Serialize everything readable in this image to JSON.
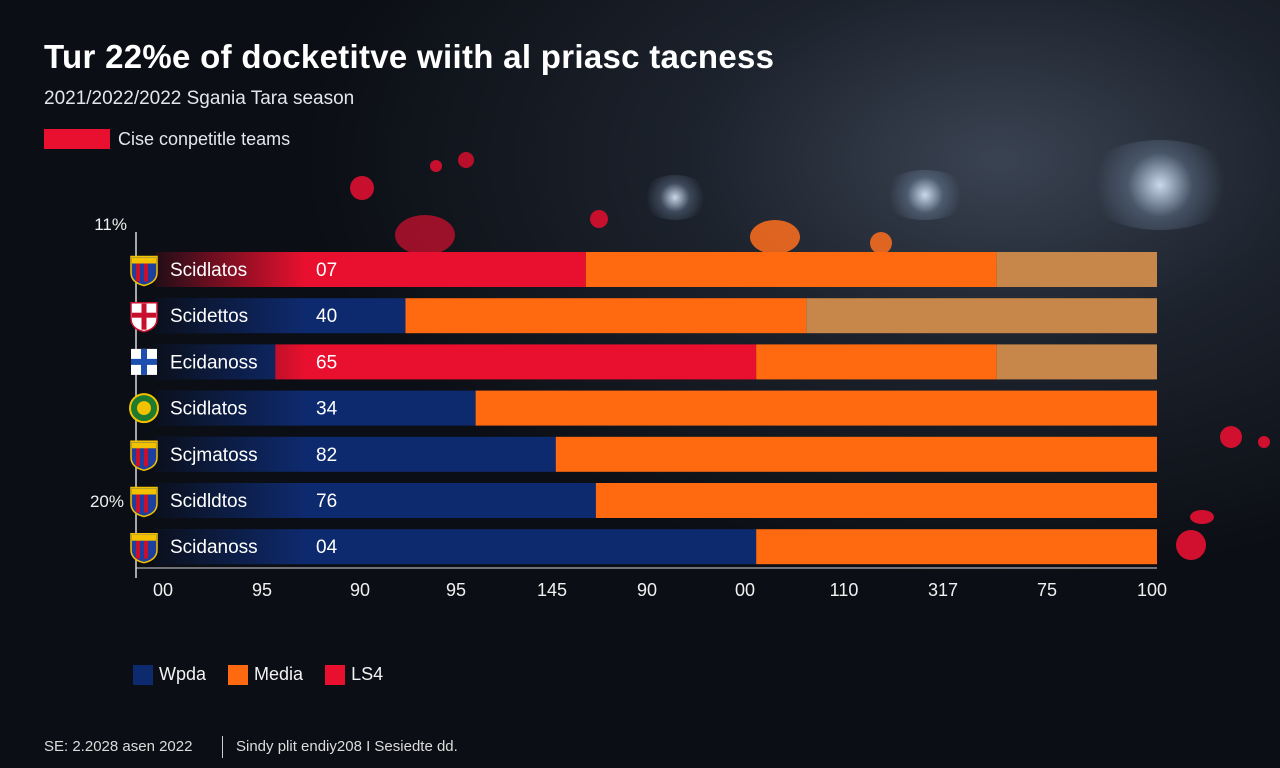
{
  "title": "Tur 22%e of docketitve wiith al priasc tacness",
  "subtitle": "2021/2022/2022 Sgania Tara season",
  "top_legend": {
    "label": "Cise conpetitle teams",
    "color": "#e8102e"
  },
  "colors": {
    "blue": "#0e2a6e",
    "orange": "#ff6a10",
    "red": "#e8102e",
    "tan": "#c8874a"
  },
  "chart_data": {
    "type": "bar",
    "orientation": "horizontal",
    "stacked": true,
    "y_axis_labels": [
      "11%",
      "20%"
    ],
    "rows": [
      {
        "team": "Scidlatos",
        "value_label": "07",
        "crest": "stripes-red-blue",
        "blue": 0,
        "red": 43,
        "orange": 41,
        "tan": 16
      },
      {
        "team": "Scidettos",
        "value_label": "40",
        "crest": "cross-red-white",
        "blue": 25,
        "red": 0,
        "orange": 40,
        "tan": 35
      },
      {
        "team": "Ecidanoss",
        "value_label": "65",
        "crest": "cross-blue-white",
        "blue": 12,
        "red": 48,
        "orange": 24,
        "tan": 16
      },
      {
        "team": "Scidlatos",
        "value_label": "34",
        "crest": "round-green-yellow",
        "blue": 32,
        "red": 0,
        "orange": 68,
        "tan": 0
      },
      {
        "team": "Scjmatoss",
        "value_label": "82",
        "crest": "stripes-red-blue",
        "blue": 40,
        "red": 0,
        "orange": 60,
        "tan": 0
      },
      {
        "team": "Scidldtos",
        "value_label": "76",
        "crest": "stripes-red-blue",
        "blue": 44,
        "red": 0,
        "orange": 56,
        "tan": 0
      },
      {
        "team": "Scidanoss",
        "value_label": "04",
        "crest": "stripes-red-blue",
        "blue": 60,
        "red": 0,
        "orange": 40,
        "tan": 0
      }
    ],
    "x_ticks": [
      "00",
      "95",
      "90",
      "95",
      "145",
      "90",
      "00",
      "110",
      "317",
      "75",
      "100"
    ],
    "legend": [
      {
        "name": "Wpda",
        "color": "#0e2a6e"
      },
      {
        "name": "Media",
        "color": "#ff6a10"
      },
      {
        "name": "LS4",
        "color": "#e8102e"
      }
    ]
  },
  "footer": {
    "left": "SE: 2.2028 asen 2022",
    "right": "Sindy plit endiy208 I Sesiedte dd."
  }
}
